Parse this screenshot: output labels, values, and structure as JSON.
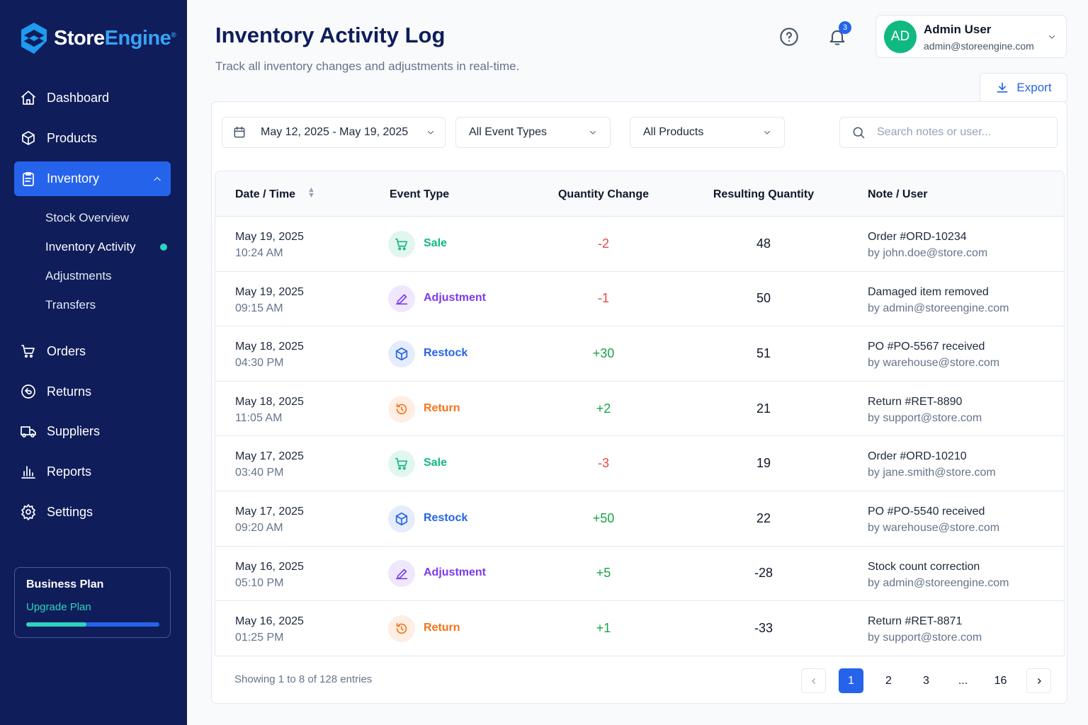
{
  "sidebar": {
    "brand": {
      "part_a": "Store",
      "part_b": "Engine",
      "mark": "®"
    },
    "nav": [
      "Dashboard",
      "Products",
      "Inventory",
      "Orders",
      "Returns",
      "Suppliers",
      "Reports",
      "Settings"
    ],
    "subnav": [
      "Stock Overview",
      "Inventory Activity",
      "Adjustments",
      "Transfers"
    ],
    "plan": {
      "title": "Business Plan",
      "link": "Upgrade Plan"
    }
  },
  "header": {
    "title": "Inventory Activity Log",
    "subtitle": "Track all inventory changes and adjustments in real-time.",
    "notifications": 3,
    "user": {
      "initials": "AD",
      "name": "Admin User",
      "email": "admin@storeengine.com"
    },
    "export": "Export"
  },
  "filters": {
    "date": "May 12, 2025 - May 19, 2025",
    "event": "All Event Types",
    "product": "All Products",
    "search": "Search notes or user..."
  },
  "table": {
    "columns": [
      "Date / Time",
      "Event Type",
      "Quantity Change",
      "Resulting Quantity",
      "Note / User"
    ],
    "event_colors": [
      "#10b981",
      "#7c3aed",
      "#2563eb",
      "#f97316"
    ],
    "rows": [
      {
        "date": "May 19, 2025",
        "time": "10:24 AM",
        "event": "Sale",
        "change": "-2",
        "result": 48,
        "note": "Order #ORD-10234",
        "user": "by john.doe@store.com"
      },
      {
        "date": "May 19, 2025",
        "time": "09:15 AM",
        "event": "Adjustment",
        "change": "-1",
        "result": 50,
        "note": "Damaged item removed",
        "user": "by admin@storeengine.com"
      },
      {
        "date": "May 18, 2025",
        "time": "04:30 PM",
        "event": "Restock",
        "change": "+30",
        "result": 51,
        "note": "PO #PO-5567 received",
        "user": "by warehouse@store.com"
      },
      {
        "date": "May 18, 2025",
        "time": "11:05 AM",
        "event": "Return",
        "change": "+2",
        "result": 21,
        "note": "Return #RET-8890",
        "user": "by support@store.com"
      },
      {
        "date": "May 17, 2025",
        "time": "03:40 PM",
        "event": "Sale",
        "change": "-3",
        "result": 19,
        "note": "Order #ORD-10210",
        "user": "by jane.smith@store.com"
      },
      {
        "date": "May 17, 2025",
        "time": "09:20 AM",
        "event": "Restock",
        "change": "+50",
        "result": 22,
        "note": "PO #PO-5540 received",
        "user": "by warehouse@store.com"
      },
      {
        "date": "May 16, 2025",
        "time": "05:10 PM",
        "event": "Adjustment",
        "change": "+5",
        "result": -28,
        "note": "Stock count correction",
        "user": "by admin@storeengine.com"
      },
      {
        "date": "May 16, 2025",
        "time": "01:25 PM",
        "event": "Return",
        "change": "+1",
        "result": -33,
        "note": "Return #RET-8871",
        "user": "by support@store.com"
      }
    ]
  },
  "pagination": {
    "summary": "Showing 1 to 8 of 128 entries",
    "pages": [
      "1",
      "2",
      "3",
      "...",
      "16"
    ]
  }
}
